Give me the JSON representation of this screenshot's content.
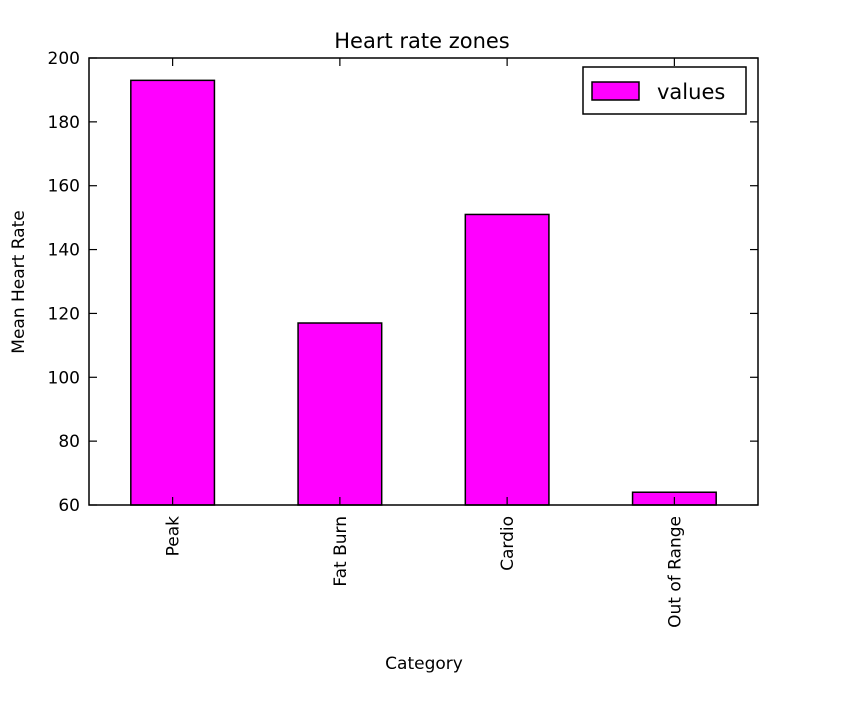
{
  "chart_data": {
    "type": "bar",
    "title": "Heart rate zones",
    "xlabel": "Category",
    "ylabel": "Mean Heart Rate",
    "categories": [
      "Peak",
      "Fat Burn",
      "Cardio",
      "Out of Range"
    ],
    "series": [
      {
        "name": "values",
        "values": [
          193,
          117,
          151,
          64
        ]
      }
    ],
    "ylim": [
      60,
      200
    ],
    "yticks": [
      "60",
      "80",
      "100",
      "120",
      "140",
      "160",
      "180",
      "200"
    ],
    "grid": false,
    "legend": {
      "placement": "top-right",
      "entries": [
        "values"
      ]
    },
    "bar_color": "#ff00ff",
    "edge_color": "#000000"
  }
}
